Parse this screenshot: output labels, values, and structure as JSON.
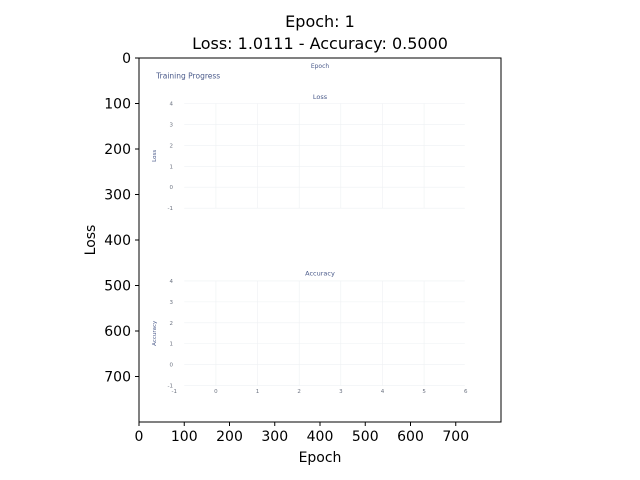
{
  "chart_data": {
    "type": "line",
    "title_line1": "Epoch: 1",
    "title_line2": "Loss: 1.0111 - Accuracy: 0.5000",
    "xlabel": "Epoch",
    "ylabel": "Loss",
    "xlim": [
      0,
      800
    ],
    "ylim": [
      800,
      0
    ],
    "x_ticks": [
      0,
      100,
      200,
      300,
      400,
      500,
      600,
      700
    ],
    "y_ticks": [
      0,
      100,
      200,
      300,
      400,
      500,
      600,
      700
    ],
    "embedded_image": {
      "title": "Training Progress",
      "top_axis_label": "Epoch",
      "subplots": [
        {
          "title": "Loss",
          "ylabel": "Loss",
          "y_ticks": [
            4,
            3,
            2,
            1,
            0,
            -1
          ],
          "series": []
        },
        {
          "title": "Accuracy",
          "ylabel": "Accuracy",
          "y_ticks": [
            4,
            3,
            2,
            1,
            0,
            -1
          ],
          "x_ticks": [
            -1,
            0,
            1,
            2,
            3,
            4,
            5,
            6
          ],
          "series": []
        }
      ]
    }
  }
}
